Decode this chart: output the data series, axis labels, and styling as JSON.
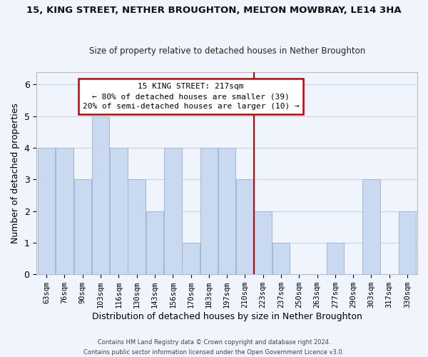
{
  "title": "15, KING STREET, NETHER BROUGHTON, MELTON MOWBRAY, LE14 3HA",
  "subtitle": "Size of property relative to detached houses in Nether Broughton",
  "xlabel": "Distribution of detached houses by size in Nether Broughton",
  "ylabel": "Number of detached properties",
  "bin_labels": [
    "63sqm",
    "76sqm",
    "90sqm",
    "103sqm",
    "116sqm",
    "130sqm",
    "143sqm",
    "156sqm",
    "170sqm",
    "183sqm",
    "197sqm",
    "210sqm",
    "223sqm",
    "237sqm",
    "250sqm",
    "263sqm",
    "277sqm",
    "290sqm",
    "303sqm",
    "317sqm",
    "330sqm"
  ],
  "bar_heights": [
    4,
    4,
    3,
    5,
    4,
    3,
    2,
    4,
    1,
    4,
    4,
    3,
    2,
    1,
    0,
    0,
    1,
    0,
    3,
    0,
    2
  ],
  "bar_color": "#c9d9f0",
  "bar_edge_color": "#a0b8d8",
  "vline_color": "#cc0000",
  "annotation_title": "15 KING STREET: 217sqm",
  "annotation_line1": "← 80% of detached houses are smaller (39)",
  "annotation_line2": "20% of semi-detached houses are larger (10) →",
  "annotation_box_color": "#ffffff",
  "annotation_box_edge": "#cc0000",
  "ylim_max": 6.4,
  "footer1": "Contains HM Land Registry data © Crown copyright and database right 2024.",
  "footer2": "Contains public sector information licensed under the Open Government Licence v3.0.",
  "bg_color": "#f0f4fc"
}
